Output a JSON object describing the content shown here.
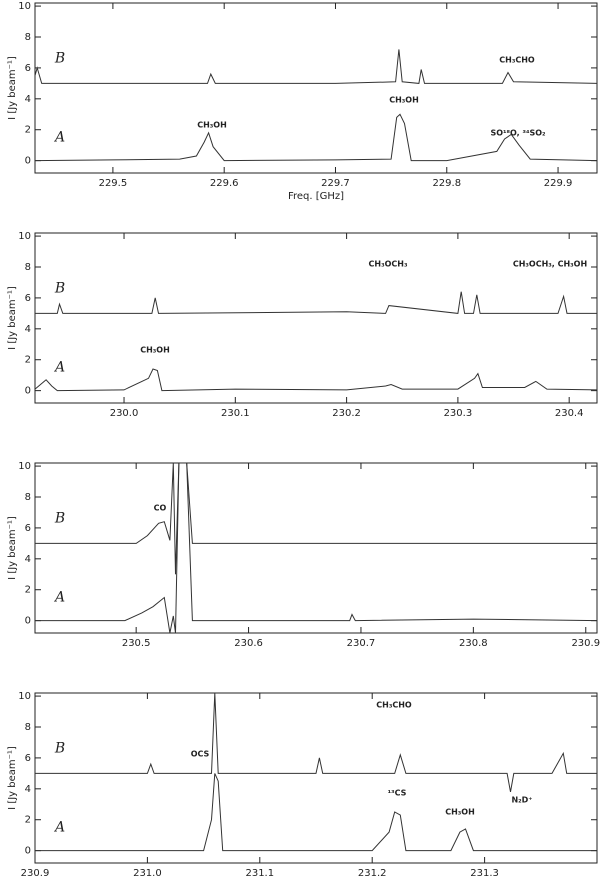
{
  "chart_data": [
    {
      "type": "line",
      "ylabel": "I [Jy beam⁻¹]",
      "xlabel": "Freq. [GHz]",
      "xlim": [
        229.43,
        229.935
      ],
      "ylim": [
        -0.8,
        10.2
      ],
      "xticks": [
        229.5,
        229.6,
        229.7,
        229.8,
        229.9
      ],
      "yticks": [
        0,
        2,
        4,
        6,
        8,
        10
      ],
      "annotations": [
        "CH₃CHO",
        "CH₃OH",
        "CH₃OH",
        "SO¹⁸O, ³⁴SO₂"
      ],
      "series": [
        {
          "name": "A",
          "color": "#333333",
          "x": [
            229.43,
            229.5,
            229.56,
            229.575,
            229.582,
            229.586,
            229.59,
            229.6,
            229.7,
            229.75,
            229.755,
            229.758,
            229.762,
            229.768,
            229.8,
            229.845,
            229.852,
            229.858,
            229.865,
            229.875,
            229.935
          ],
          "values": [
            0,
            0.05,
            0.1,
            0.3,
            1.2,
            1.8,
            0.9,
            0,
            0.05,
            0.1,
            2.8,
            3.0,
            2.4,
            0,
            0,
            0.6,
            1.4,
            1.7,
            1.0,
            0.1,
            0
          ]
        },
        {
          "name": "B",
          "color": "#333333",
          "x": [
            229.43,
            229.432,
            229.436,
            229.5,
            229.585,
            229.588,
            229.592,
            229.7,
            229.754,
            229.757,
            229.76,
            229.775,
            229.777,
            229.78,
            229.85,
            229.855,
            229.86,
            229.935
          ],
          "values": [
            5.5,
            6.0,
            5.0,
            5.0,
            5.0,
            5.6,
            5.0,
            5.0,
            5.1,
            7.2,
            5.1,
            5.0,
            5.9,
            5.0,
            5.0,
            5.7,
            5.1,
            5.0
          ]
        }
      ]
    },
    {
      "type": "line",
      "ylabel": "I [Jy beam⁻¹]",
      "xlim": [
        229.92,
        230.425
      ],
      "ylim": [
        -0.8,
        10.2
      ],
      "xticks": [
        {
          "value": 230,
          "label": "230.0"
        },
        230.1,
        230.2,
        230.3,
        230.4
      ],
      "yticks": [
        0,
        2,
        4,
        6,
        8,
        10
      ],
      "annotations": [
        "CH₃OCH₃",
        "CH₃OCH₃, CH₃OH",
        "CH₃OH"
      ],
      "series": [
        {
          "name": "A",
          "color": "#333333",
          "x": [
            229.92,
            229.93,
            229.935,
            229.94,
            230.0,
            230.022,
            230.026,
            230.03,
            230.034,
            230.1,
            230.2,
            230.235,
            230.24,
            230.25,
            230.3,
            230.315,
            230.318,
            230.322,
            230.36,
            230.37,
            230.38,
            230.425
          ],
          "values": [
            0.1,
            0.7,
            0.3,
            0,
            0.05,
            0.8,
            1.4,
            1.3,
            0,
            0.1,
            0.05,
            0.3,
            0.4,
            0.1,
            0.1,
            0.8,
            1.1,
            0.2,
            0.2,
            0.6,
            0.1,
            0.05
          ]
        },
        {
          "name": "B",
          "color": "#333333",
          "x": [
            229.92,
            229.94,
            229.942,
            229.945,
            230.025,
            230.028,
            230.031,
            230.2,
            230.235,
            230.238,
            230.3,
            230.303,
            230.306,
            230.314,
            230.317,
            230.32,
            230.39,
            230.395,
            230.398,
            230.425
          ],
          "values": [
            5.0,
            5.0,
            5.6,
            5.0,
            5.0,
            6.0,
            5.0,
            5.1,
            5.0,
            5.5,
            5.0,
            6.4,
            5.0,
            5.0,
            6.2,
            5.0,
            5.0,
            6.1,
            5.0,
            5.0
          ]
        }
      ]
    },
    {
      "type": "line",
      "ylabel": "I [Jy beam⁻¹]",
      "xlim": [
        230.41,
        230.91
      ],
      "ylim": [
        -0.8,
        10.2
      ],
      "xticks": [
        230.5,
        230.6,
        230.7,
        230.8,
        230.9
      ],
      "yticks": [
        0,
        2,
        4,
        6,
        8,
        10
      ],
      "annotations": [
        "CO"
      ],
      "series": [
        {
          "name": "A",
          "color": "#333333",
          "x": [
            230.41,
            230.49,
            230.505,
            230.515,
            230.525,
            230.53,
            230.533,
            230.535,
            230.538,
            230.541,
            230.545,
            230.55,
            230.6,
            230.69,
            230.692,
            230.695,
            230.8,
            230.91
          ],
          "values": [
            0,
            0,
            0.5,
            0.9,
            1.5,
            -0.8,
            0.3,
            -0.8,
            10.2,
            10.2,
            10.2,
            0,
            0,
            0,
            0.4,
            0,
            0.1,
            0
          ]
        },
        {
          "name": "B",
          "color": "#333333",
          "x": [
            230.41,
            230.5,
            230.51,
            230.52,
            230.525,
            230.53,
            230.533,
            230.535,
            230.538,
            230.542,
            230.545,
            230.55,
            230.7,
            230.91
          ],
          "values": [
            5,
            5,
            5.5,
            6.3,
            6.4,
            5.2,
            10.2,
            3.0,
            10.2,
            10.2,
            10.2,
            5,
            5,
            5
          ]
        }
      ]
    },
    {
      "type": "line",
      "ylabel": "I [Jy beam⁻¹]",
      "xlim": [
        230.9,
        231.4
      ],
      "ylim": [
        -0.8,
        10.2
      ],
      "xticks": [
        230.9,
        {
          "value": 231,
          "label": "231.0"
        },
        231.1,
        231.2,
        231.3
      ],
      "yticks": [
        0,
        2,
        4,
        6,
        8,
        10
      ],
      "annotations": [
        "OCS",
        "CH₃CHO",
        "¹³CS",
        "CH₃OH",
        "N₂D⁺"
      ],
      "series": [
        {
          "name": "A",
          "color": "#333333",
          "x": [
            230.9,
            231.05,
            231.057,
            231.06,
            231.063,
            231.067,
            231.2,
            231.215,
            231.22,
            231.225,
            231.23,
            231.27,
            231.278,
            231.283,
            231.29,
            231.4
          ],
          "values": [
            0,
            0,
            2,
            5.0,
            4.5,
            0,
            0,
            1.2,
            2.5,
            2.3,
            0,
            0,
            1.2,
            1.4,
            0,
            0
          ]
        },
        {
          "name": "B",
          "color": "#333333",
          "x": [
            230.9,
            231.0,
            231.003,
            231.006,
            231.057,
            231.06,
            231.063,
            231.15,
            231.153,
            231.156,
            231.22,
            231.225,
            231.23,
            231.3,
            231.32,
            231.323,
            231.326,
            231.36,
            231.37,
            231.373,
            231.4
          ],
          "values": [
            5,
            5,
            5.6,
            5,
            5,
            10.2,
            5,
            5,
            6.0,
            5,
            5,
            6.2,
            5,
            5,
            5,
            3.8,
            5,
            5,
            6.3,
            5,
            5
          ]
        }
      ]
    }
  ]
}
